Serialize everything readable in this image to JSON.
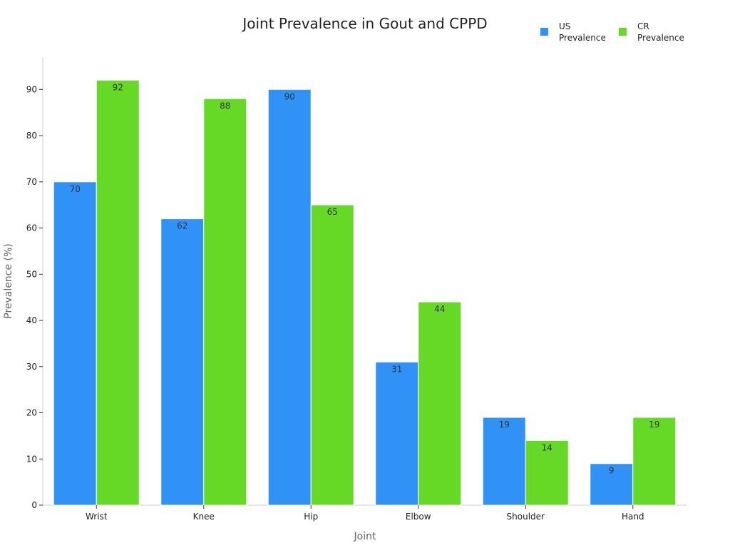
{
  "chart_data": {
    "type": "bar",
    "title": "Joint Prevalence in Gout and CPPD",
    "xlabel": "Joint",
    "ylabel": "Prevalence (%)",
    "categories": [
      "Wrist",
      "Knee",
      "Hip",
      "Elbow",
      "Shoulder",
      "Hand"
    ],
    "series": [
      {
        "name": "US Prevalence",
        "legend_lines": [
          "US",
          "Prevalence"
        ],
        "color": "#3092f7",
        "values": [
          70,
          62,
          90,
          31,
          19,
          9
        ]
      },
      {
        "name": "CR Prevalence",
        "legend_lines": [
          "CR",
          "Prevalence"
        ],
        "color": "#66d926",
        "values": [
          92,
          88,
          65,
          44,
          14,
          19
        ]
      }
    ],
    "ylim": [
      0,
      97
    ],
    "yticks": [
      0,
      10,
      20,
      30,
      40,
      50,
      60,
      70,
      80,
      90
    ],
    "grid": false,
    "legend_position": "top-right"
  }
}
